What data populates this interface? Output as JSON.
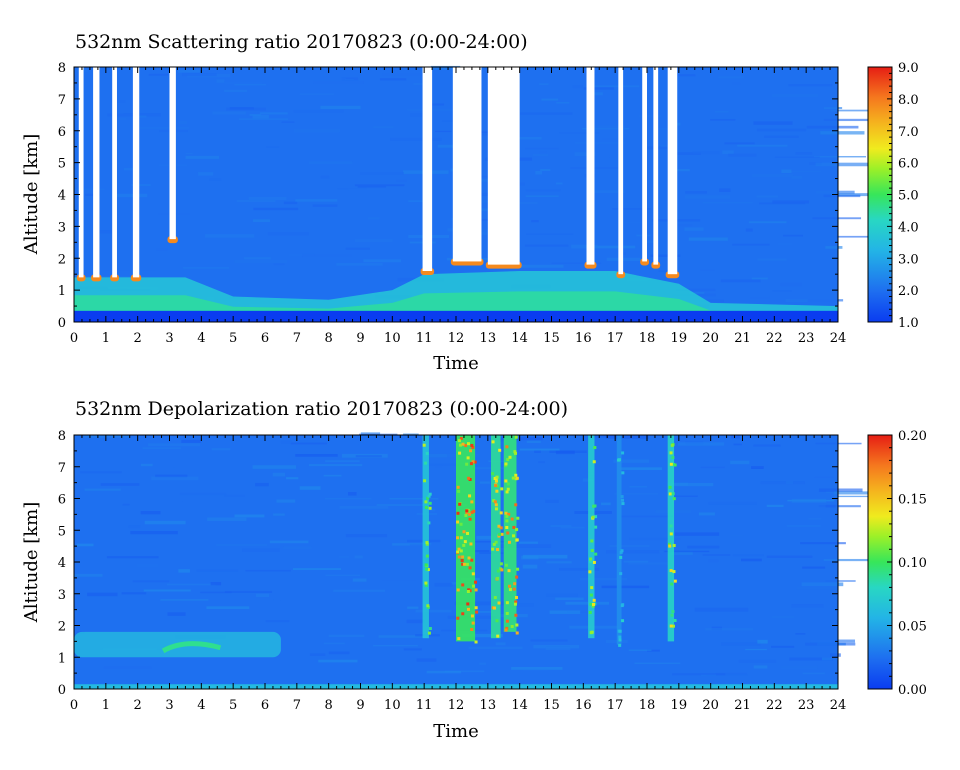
{
  "chart_data": [
    {
      "type": "heatmap",
      "title": "532nm Scattering ratio  20170823 (0:00-24:00)",
      "xlabel": "Time",
      "ylabel": "Altitude [km]",
      "xlim": [
        0,
        24
      ],
      "ylim": [
        0,
        8
      ],
      "x_ticks": [
        "0",
        "1",
        "2",
        "3",
        "4",
        "5",
        "6",
        "7",
        "8",
        "9",
        "10",
        "11",
        "12",
        "13",
        "14",
        "15",
        "16",
        "17",
        "18",
        "19",
        "20",
        "21",
        "22",
        "23",
        "24"
      ],
      "y_ticks": [
        "0",
        "1",
        "2",
        "3",
        "4",
        "5",
        "6",
        "7",
        "8"
      ],
      "colorbar": {
        "min": 1.0,
        "max": 9.0,
        "ticks": [
          "1.0",
          "2.0",
          "3.0",
          "4.0",
          "5.0",
          "6.0",
          "7.0",
          "8.0",
          "9.0"
        ]
      },
      "background_level": 2.0,
      "surface_layer": {
        "top_km": 0.35,
        "value": 1.0
      },
      "boundary_layer": [
        {
          "x": 0,
          "top_km": 1.4,
          "value": 4.5
        },
        {
          "x": 2,
          "top_km": 1.4,
          "value": 4.5
        },
        {
          "x": 3.5,
          "top_km": 1.4,
          "value": 4.0
        },
        {
          "x": 5,
          "top_km": 0.8,
          "value": 3.0
        },
        {
          "x": 8,
          "top_km": 0.7,
          "value": 3.0
        },
        {
          "x": 10,
          "top_km": 1.0,
          "value": 3.5
        },
        {
          "x": 11,
          "top_km": 1.5,
          "value": 4.0
        },
        {
          "x": 14,
          "top_km": 1.6,
          "value": 4.0
        },
        {
          "x": 17,
          "top_km": 1.6,
          "value": 4.0
        },
        {
          "x": 19,
          "top_km": 1.2,
          "value": 3.5
        },
        {
          "x": 20,
          "top_km": 0.6,
          "value": 2.5
        },
        {
          "x": 24,
          "top_km": 0.5,
          "value": 2.5
        }
      ],
      "saturated_columns": [
        {
          "x0": 0.15,
          "x1": 0.3,
          "base_km": 1.4
        },
        {
          "x0": 0.6,
          "x1": 0.8,
          "base_km": 1.4
        },
        {
          "x0": 1.2,
          "x1": 1.35,
          "base_km": 1.4
        },
        {
          "x0": 1.85,
          "x1": 2.05,
          "base_km": 1.4
        },
        {
          "x0": 3.0,
          "x1": 3.2,
          "base_km": 2.6
        },
        {
          "x0": 10.95,
          "x1": 11.25,
          "base_km": 1.6
        },
        {
          "x0": 11.9,
          "x1": 12.8,
          "base_km": 1.9
        },
        {
          "x0": 13.0,
          "x1": 14.0,
          "base_km": 1.8
        },
        {
          "x0": 16.1,
          "x1": 16.35,
          "base_km": 1.8
        },
        {
          "x0": 17.1,
          "x1": 17.25,
          "base_km": 1.5
        },
        {
          "x0": 17.85,
          "x1": 18.0,
          "base_km": 1.9
        },
        {
          "x0": 18.2,
          "x1": 18.35,
          "base_km": 1.8
        },
        {
          "x0": 18.65,
          "x1": 18.95,
          "base_km": 1.5
        }
      ]
    },
    {
      "type": "heatmap",
      "title": "532nm Depolarization ratio  20170823 (0:00-24:00)",
      "xlabel": "Time",
      "ylabel": "Altitude [km]",
      "xlim": [
        0,
        24
      ],
      "ylim": [
        0,
        8
      ],
      "x_ticks": [
        "0",
        "1",
        "2",
        "3",
        "4",
        "5",
        "6",
        "7",
        "8",
        "9",
        "10",
        "11",
        "12",
        "13",
        "14",
        "15",
        "16",
        "17",
        "18",
        "19",
        "20",
        "21",
        "22",
        "23",
        "24"
      ],
      "y_ticks": [
        "0",
        "1",
        "2",
        "3",
        "4",
        "5",
        "6",
        "7",
        "8"
      ],
      "colorbar": {
        "min": 0.0,
        "max": 0.2,
        "ticks": [
          "0.00",
          "0.05",
          "0.10",
          "0.15",
          "0.20"
        ]
      },
      "background_level": 0.025,
      "surface_layer": {
        "top_km": 0.15,
        "value": 0.06
      },
      "aerosol_layer": {
        "x0": 0,
        "x1": 6.5,
        "bottom_km": 1.0,
        "top_km": 1.8,
        "value": 0.06
      },
      "high_depol_columns": [
        {
          "x0": 10.95,
          "x1": 11.15,
          "value": 0.12,
          "base_km": 1.6
        },
        {
          "x0": 12.0,
          "x1": 12.6,
          "value": 0.18,
          "base_km": 1.5
        },
        {
          "x0": 13.1,
          "x1": 13.4,
          "value": 0.16,
          "base_km": 1.6
        },
        {
          "x0": 13.5,
          "x1": 13.9,
          "value": 0.17,
          "base_km": 1.8
        },
        {
          "x0": 16.15,
          "x1": 16.35,
          "value": 0.13,
          "base_km": 1.6
        },
        {
          "x0": 17.05,
          "x1": 17.2,
          "value": 0.07,
          "base_km": 1.4
        },
        {
          "x0": 18.65,
          "x1": 18.85,
          "value": 0.14,
          "base_km": 1.5
        }
      ]
    }
  ]
}
